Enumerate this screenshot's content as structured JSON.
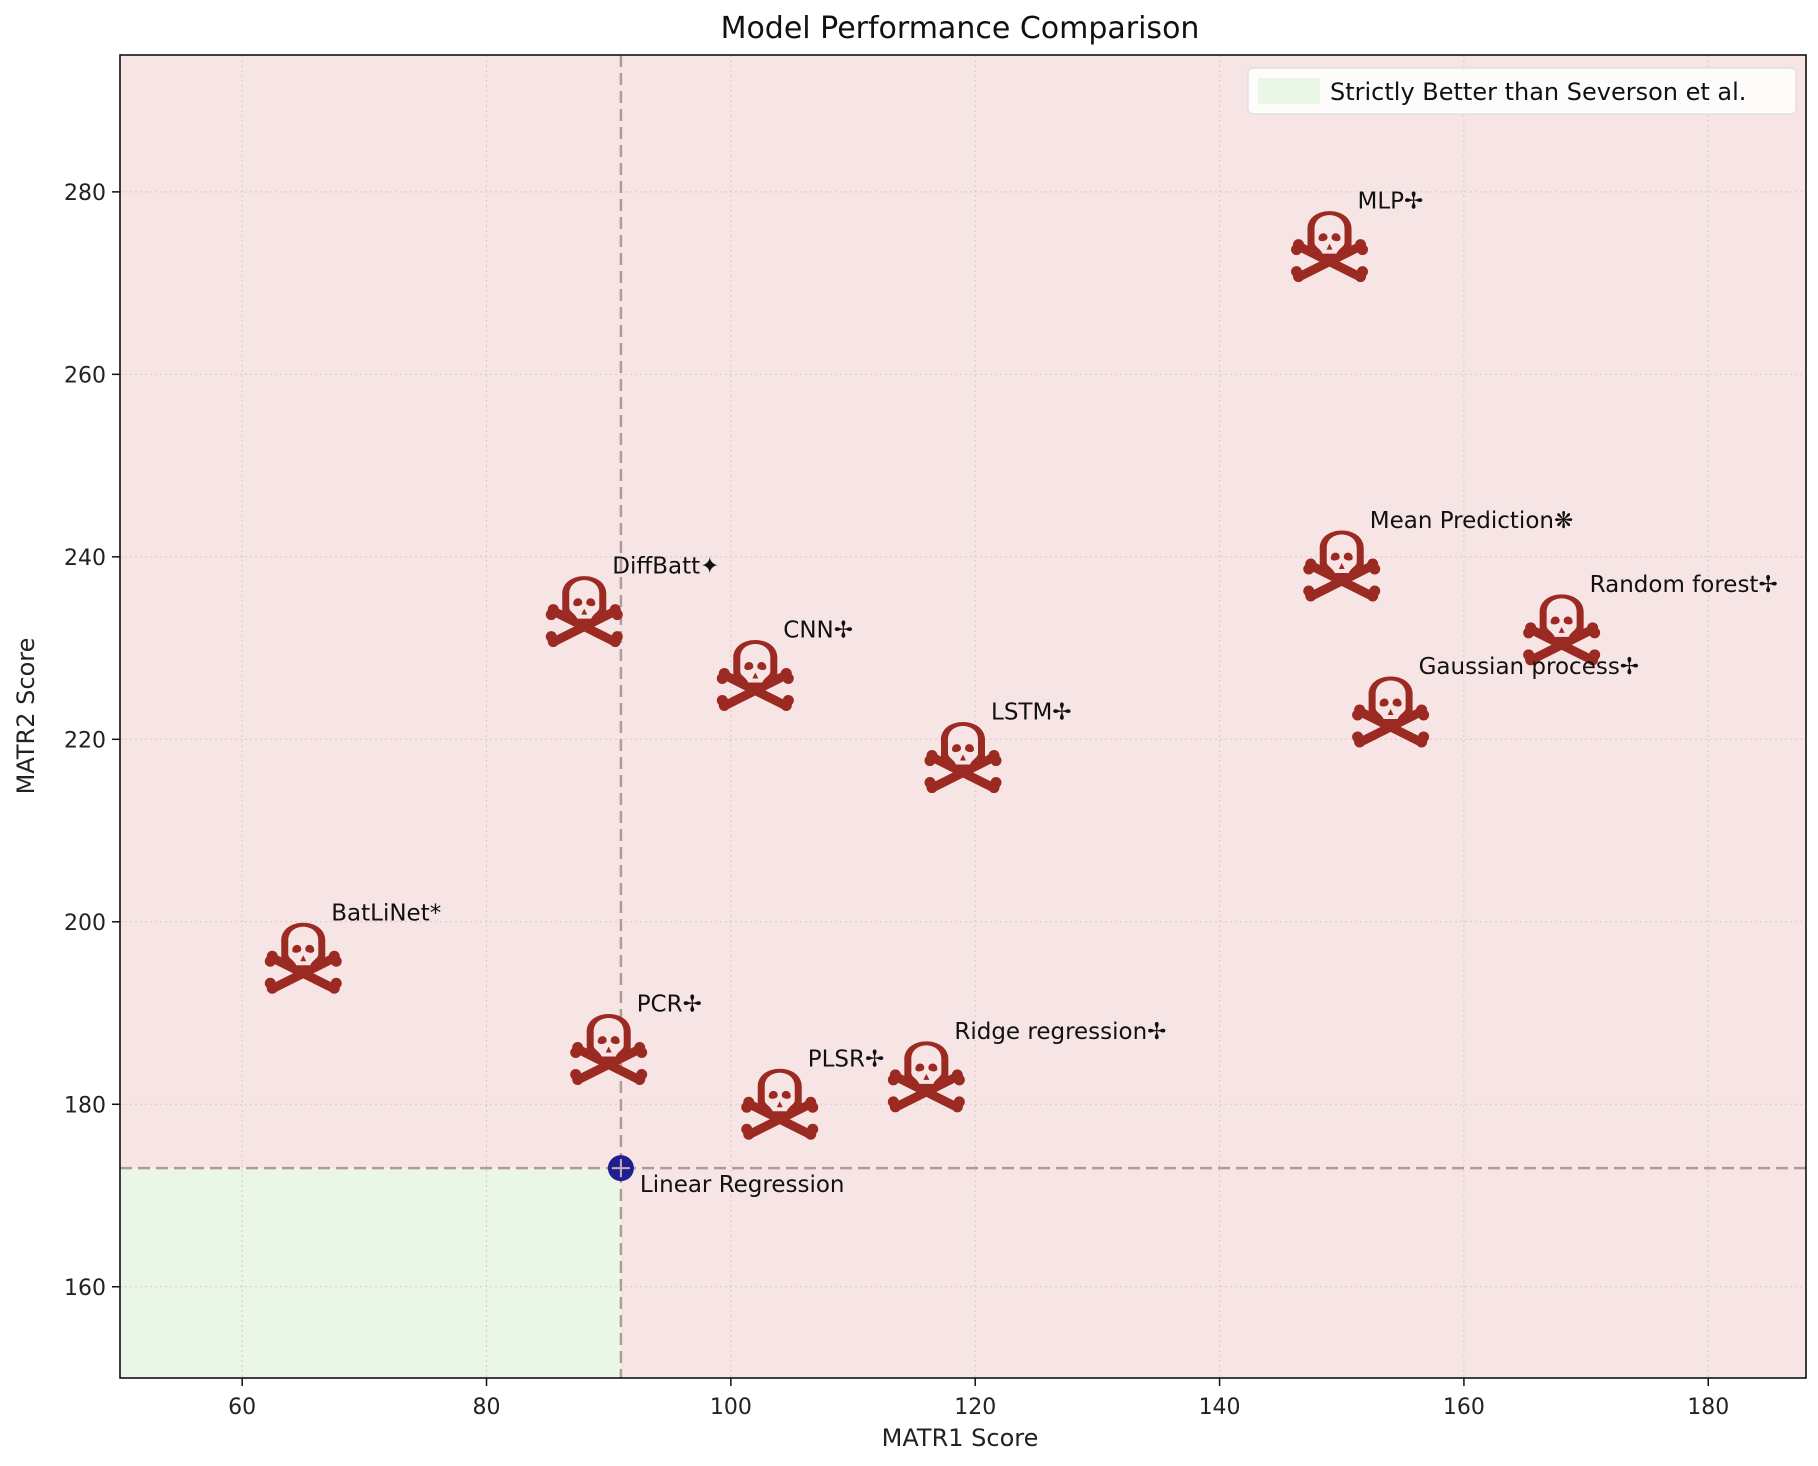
{
  "chart_data": {
    "type": "scatter",
    "title": "Model Performance Comparison",
    "xlabel": "MATR1 Score",
    "ylabel": "MATR2 Score",
    "xlim": [
      50,
      188
    ],
    "ylim": [
      150,
      295
    ],
    "xticks": [
      60,
      80,
      100,
      120,
      140,
      160,
      180
    ],
    "yticks": [
      160,
      180,
      200,
      220,
      240,
      260,
      280
    ],
    "grid": true,
    "legend": {
      "placement": "top-right",
      "entries": [
        {
          "label": "Strictly Better than Severson et al.",
          "color": "#eaf7e6"
        }
      ]
    },
    "baseline": {
      "name": "Linear Regression",
      "x": 91,
      "y": 173,
      "color": "#1f1f8f"
    },
    "points": [
      {
        "label": "MLP✢",
        "x": 149,
        "y": 274
      },
      {
        "label": "Mean Prediction❋",
        "x": 150,
        "y": 239
      },
      {
        "label": "Random forest✢",
        "x": 168,
        "y": 232
      },
      {
        "label": "Gaussian process✢",
        "x": 154,
        "y": 223
      },
      {
        "label": "DiffBatt✦",
        "x": 88,
        "y": 234
      },
      {
        "label": "CNN✢",
        "x": 102,
        "y": 227
      },
      {
        "label": "LSTM✢",
        "x": 119,
        "y": 218
      },
      {
        "label": "BatLiNet*",
        "x": 65,
        "y": 196
      },
      {
        "label": "PCR✢",
        "x": 90,
        "y": 186
      },
      {
        "label": "PLSR✢",
        "x": 104,
        "y": 180
      },
      {
        "label": "Ridge regression✢",
        "x": 116,
        "y": 183
      }
    ],
    "marker": "skull-and-crossbones",
    "colors": {
      "background": "#f7e5e5",
      "better_region": "#eaf7e6",
      "marker": "#9b2a22",
      "baseline": "#1f1f8f",
      "reference_line": "#b09a9a"
    }
  }
}
